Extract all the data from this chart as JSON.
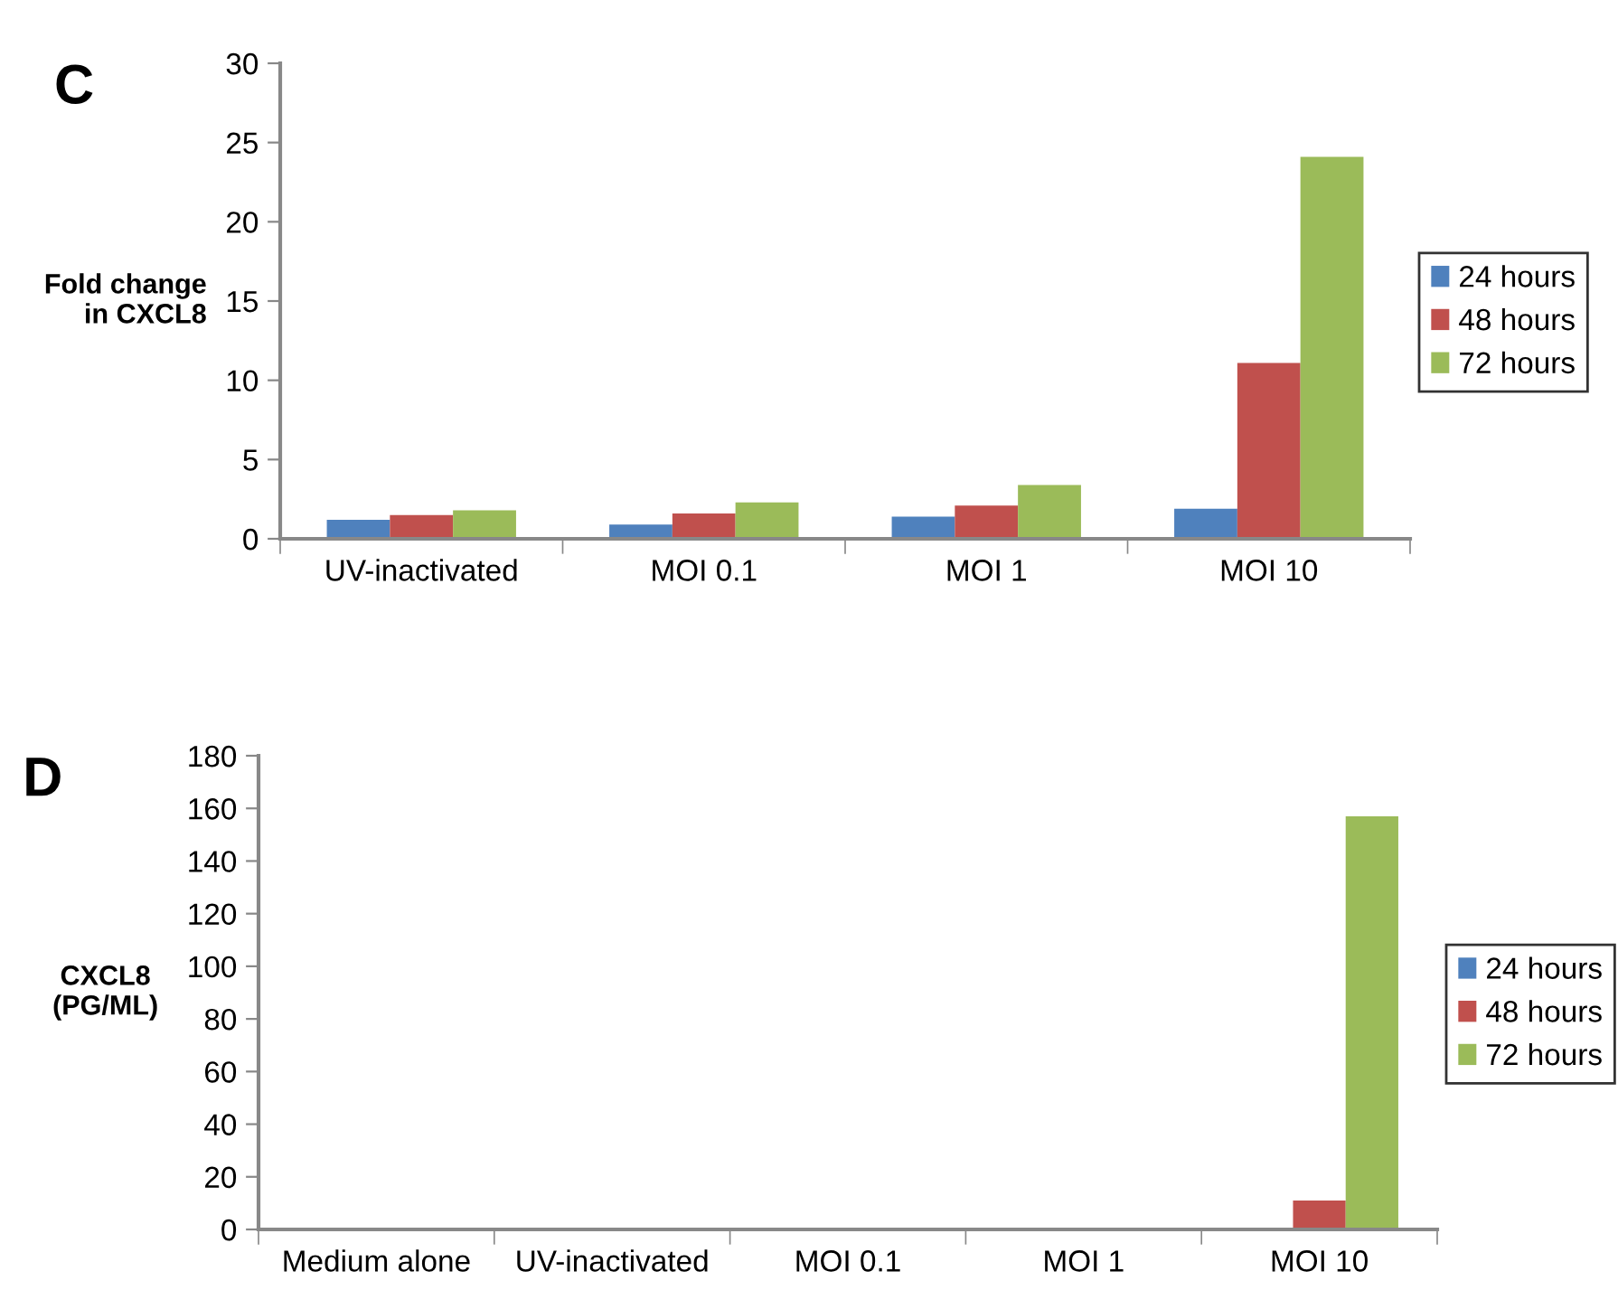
{
  "chart_data": [
    {
      "type": "bar",
      "title": "C",
      "ylabel": "Fold change\nin CXCL8",
      "categories": [
        "UV-inactivated",
        "MOI 0.1",
        "MOI 1",
        "MOI 10"
      ],
      "series": [
        {
          "name": "24 hours",
          "color": "#4f81bd",
          "values": [
            1.2,
            0.9,
            1.4,
            1.9
          ]
        },
        {
          "name": "48 hours",
          "color": "#c0504d",
          "values": [
            1.5,
            1.6,
            2.1,
            11.1
          ]
        },
        {
          "name": "72 hours",
          "color": "#9bbb59",
          "values": [
            1.8,
            2.3,
            3.4,
            24.1
          ]
        }
      ],
      "ylim": [
        0,
        30
      ],
      "yticks": [
        0,
        5,
        10,
        15,
        20,
        25,
        30
      ],
      "grid": false,
      "legend": "right"
    },
    {
      "type": "bar",
      "title": "D",
      "ylabel": "CXCL8\n(PG/ML)",
      "categories": [
        "Medium alone",
        "UV-inactivated",
        "MOI 0.1",
        "MOI 1",
        "MOI 10"
      ],
      "series": [
        {
          "name": "24 hours",
          "color": "#4f81bd",
          "values": [
            0,
            0,
            0,
            0,
            0
          ]
        },
        {
          "name": "48 hours",
          "color": "#c0504d",
          "values": [
            0,
            0,
            0,
            0,
            11
          ]
        },
        {
          "name": "72 hours",
          "color": "#9bbb59",
          "values": [
            0,
            0,
            0,
            0,
            157
          ]
        }
      ],
      "ylim": [
        0,
        180
      ],
      "yticks": [
        0,
        20,
        40,
        60,
        80,
        100,
        120,
        140,
        160,
        180
      ],
      "grid": false,
      "legend": "right"
    }
  ]
}
